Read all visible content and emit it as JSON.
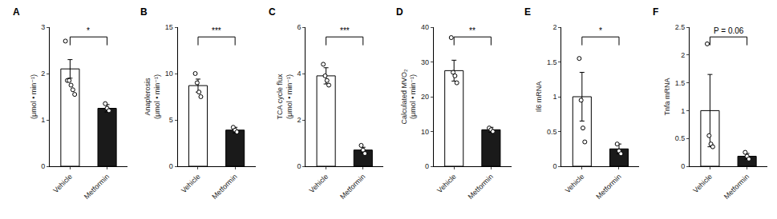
{
  "chart_data": [
    {
      "type": "bar",
      "title": "A",
      "ylabel": "(μmol • min⁻¹)",
      "categories": [
        "Vehicle",
        "Metformin"
      ],
      "values": [
        2.1,
        1.25
      ],
      "errors": [
        0.2,
        0.08
      ],
      "points": [
        [
          2.7,
          1.85,
          1.85,
          1.75,
          1.65,
          1.55
        ],
        [
          1.35,
          1.25,
          1.2
        ]
      ],
      "colors": [
        "white",
        "#1a1a1a"
      ],
      "ylim": [
        0,
        3
      ],
      "yticks": [
        0,
        1,
        2,
        3
      ],
      "annotations": [
        {
          "text": "*"
        }
      ]
    },
    {
      "type": "bar",
      "title": "B",
      "ylabel": "Anaplerosis\n(μmol • min⁻¹)",
      "categories": [
        "Vehicle",
        "Metformin"
      ],
      "values": [
        8.7,
        3.9
      ],
      "errors": [
        0.7,
        0.3
      ],
      "points": [
        [
          10.0,
          9.0,
          8.0,
          7.5
        ],
        [
          4.2,
          3.9,
          3.7
        ]
      ],
      "colors": [
        "white",
        "#1a1a1a"
      ],
      "ylim": [
        0,
        15
      ],
      "yticks": [
        0,
        5,
        10,
        15
      ],
      "annotations": [
        {
          "text": "***"
        }
      ]
    },
    {
      "type": "bar",
      "title": "C",
      "ylabel": "TCA cycle flux\n(μmol • min⁻¹)",
      "categories": [
        "Vehicle",
        "Metformin"
      ],
      "values": [
        3.9,
        0.7
      ],
      "errors": [
        0.35,
        0.12
      ],
      "points": [
        [
          4.4,
          3.9,
          3.7,
          3.5
        ],
        [
          0.9,
          0.7,
          0.55
        ]
      ],
      "colors": [
        "white",
        "#1a1a1a"
      ],
      "ylim": [
        0,
        6
      ],
      "yticks": [
        0,
        2,
        4,
        6
      ],
      "annotations": [
        {
          "text": "***"
        }
      ]
    },
    {
      "type": "bar",
      "title": "D",
      "ylabel": "Calculated MVO₂\n(μmol • min⁻¹)",
      "categories": [
        "Vehicle",
        "Metformin"
      ],
      "values": [
        27.5,
        10.5
      ],
      "errors": [
        3.0,
        0.7
      ],
      "points": [
        [
          37,
          27,
          26,
          24
        ],
        [
          11.0,
          10.5,
          10.0
        ]
      ],
      "colors": [
        "white",
        "#1a1a1a"
      ],
      "ylim": [
        0,
        40
      ],
      "yticks": [
        0,
        10,
        20,
        30,
        40
      ],
      "annotations": [
        {
          "text": "**"
        }
      ]
    },
    {
      "type": "bar",
      "title": "E",
      "ylabel": "Il6 mRNA",
      "categories": [
        "Vehicle",
        "Metformin"
      ],
      "values": [
        1.0,
        0.25
      ],
      "errors": [
        0.35,
        0.07
      ],
      "points": [
        [
          1.55,
          0.95,
          0.55,
          0.35
        ],
        [
          0.32,
          0.22,
          0.18
        ]
      ],
      "colors": [
        "white",
        "#1a1a1a"
      ],
      "ylim": [
        0,
        2
      ],
      "yticks": [
        0,
        0.5,
        1,
        1.5,
        2
      ],
      "annotations": [
        {
          "text": "*"
        }
      ]
    },
    {
      "type": "bar",
      "title": "F",
      "ylabel": "Tnfa mRNA",
      "categories": [
        "Vehicle",
        "Metformin"
      ],
      "values": [
        1.0,
        0.18
      ],
      "errors": [
        0.65,
        0.05
      ],
      "points": [
        [
          2.2,
          0.55,
          0.4,
          0.35
        ],
        [
          0.25,
          0.18,
          0.13
        ]
      ],
      "colors": [
        "white",
        "#1a1a1a"
      ],
      "ylim": [
        0,
        2.5
      ],
      "yticks": [
        0,
        0.5,
        1,
        1.5,
        2,
        2.5
      ],
      "annotations": [
        {
          "text": "P = 0.06"
        }
      ]
    }
  ]
}
